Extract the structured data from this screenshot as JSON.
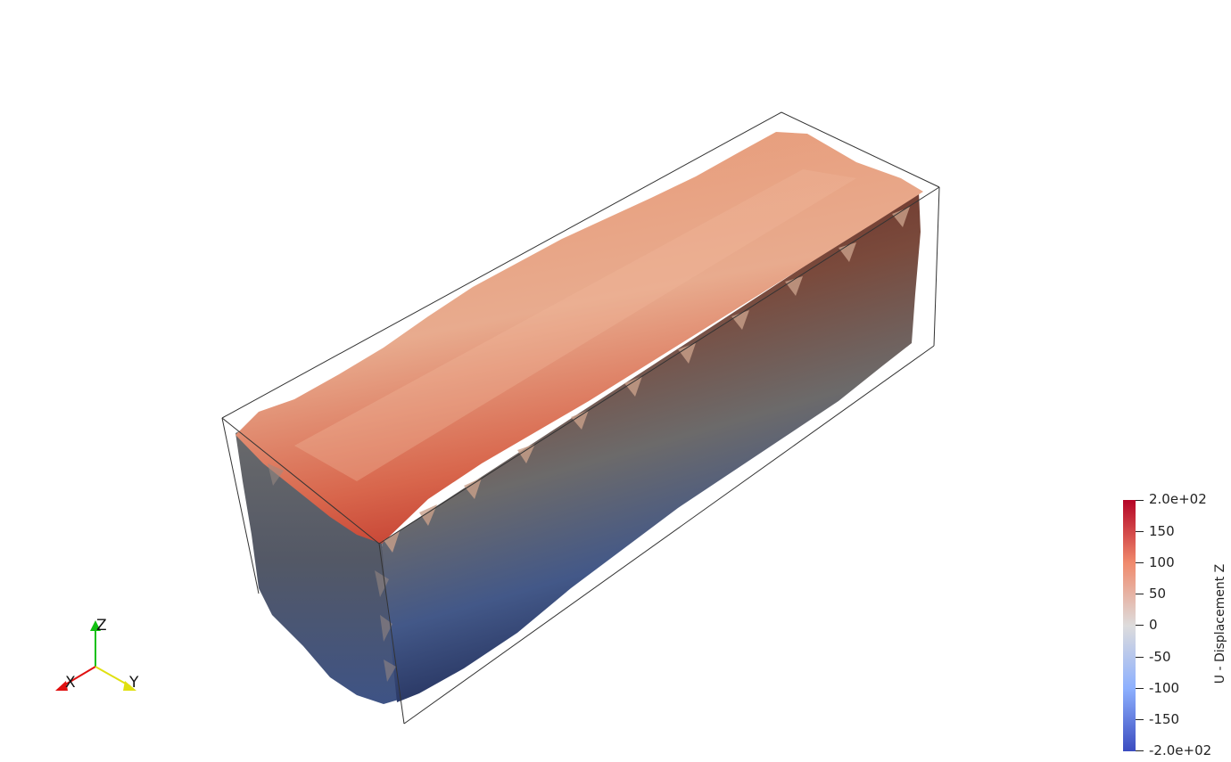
{
  "scene": {
    "object": "deformed-block",
    "colormap": "Cool to Warm",
    "colors": {
      "high": "#b40426",
      "mid": "#dddcdc",
      "low": "#3b4cc0",
      "top_face_warm": "#e8a27f",
      "outline": "#333333"
    }
  },
  "orientation_axes": {
    "x_label": "X",
    "y_label": "Y",
    "z_label": "Z",
    "x_color": "#e01010",
    "y_color": "#e0e010",
    "z_color": "#10c010"
  },
  "colorbar": {
    "title": "U - Displacement Z",
    "range": [
      -200,
      200
    ],
    "labels": [
      "2.0e+02",
      "150",
      "100",
      "50",
      "0",
      "-50",
      "-100",
      "-150",
      "-2.0e+02"
    ]
  }
}
